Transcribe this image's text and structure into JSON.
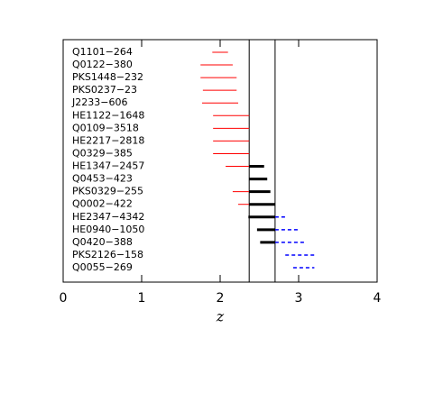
{
  "chart_data": {
    "type": "range",
    "xlabel": "z",
    "categories": [
      "Q1101−264",
      "Q0122−380",
      "PKS1448−232",
      "PKS0237−23",
      "J2233−606",
      "HE1122−1648",
      "Q0109−3518",
      "HE2217−2818",
      "Q0329−385",
      "HE1347−2457",
      "Q0453−423",
      "PKS0329−255",
      "Q0002−422",
      "HE2347−4342",
      "HE0940−1050",
      "Q0420−388",
      "PKS2126−158",
      "Q0055−269"
    ],
    "series": [
      {
        "color": "#ff0000",
        "style": "thin",
        "values": [
          [
            1.9,
            2.1
          ],
          [
            1.75,
            2.16
          ],
          [
            1.75,
            2.21
          ],
          [
            1.78,
            2.21
          ],
          [
            1.77,
            2.23
          ],
          [
            1.91,
            2.37
          ],
          [
            1.91,
            2.37
          ],
          [
            1.91,
            2.37
          ],
          [
            1.91,
            2.37
          ],
          [
            2.07,
            2.37
          ],
          null,
          [
            2.16,
            2.37
          ],
          [
            2.23,
            2.37
          ],
          null,
          null,
          null,
          null,
          null
        ]
      },
      {
        "color": "#000000",
        "style": "thick",
        "values": [
          null,
          null,
          null,
          null,
          null,
          null,
          null,
          null,
          null,
          [
            2.37,
            2.56
          ],
          [
            2.37,
            2.6
          ],
          [
            2.37,
            2.64
          ],
          [
            2.37,
            2.7
          ],
          [
            2.36,
            2.7
          ],
          [
            2.47,
            2.7
          ],
          [
            2.51,
            2.7
          ],
          null,
          null
        ]
      },
      {
        "color": "#0000ff",
        "style": "dashed",
        "values": [
          null,
          null,
          null,
          null,
          null,
          null,
          null,
          null,
          null,
          null,
          null,
          null,
          null,
          [
            2.7,
            2.83
          ],
          [
            2.7,
            2.99
          ],
          [
            2.7,
            3.07
          ],
          [
            2.83,
            3.2
          ],
          [
            2.93,
            3.2
          ]
        ]
      }
    ],
    "vlines": [
      2.37,
      2.7
    ],
    "xlim": [
      0,
      4
    ],
    "xticks": [
      0,
      1,
      2,
      3,
      4
    ]
  }
}
